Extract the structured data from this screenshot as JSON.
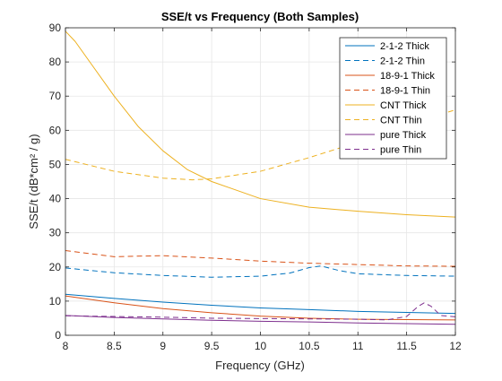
{
  "chart_data": {
    "type": "line",
    "title": "SSE/t vs Frequency (Both Samples)",
    "xlabel": "Frequency (GHz)",
    "ylabel": "SSE/t (dB*cm² / g)",
    "xlim": [
      8,
      12
    ],
    "ylim": [
      0,
      90
    ],
    "xticks": [
      "8",
      "8.5",
      "9",
      "9.5",
      "10",
      "10.5",
      "11",
      "11.5",
      "12"
    ],
    "yticks": [
      "0",
      "10",
      "20",
      "30",
      "40",
      "50",
      "60",
      "70",
      "80",
      "90"
    ],
    "grid": true,
    "legend_position": "top-right",
    "series": [
      {
        "name": "2-1-2 Thick",
        "color": "#0072BD",
        "dash": "solid",
        "x": [
          8.0,
          8.5,
          9.0,
          9.5,
          10.0,
          10.5,
          11.0,
          11.5,
          12.0
        ],
        "y": [
          12.0,
          10.8,
          9.7,
          8.8,
          8.0,
          7.5,
          7.0,
          6.7,
          6.4
        ]
      },
      {
        "name": "2-1-2 Thin",
        "color": "#0072BD",
        "dash": "dashed",
        "x": [
          8.0,
          8.5,
          9.0,
          9.5,
          10.0,
          10.3,
          10.5,
          10.62,
          10.8,
          11.0,
          11.5,
          12.0
        ],
        "y": [
          19.7,
          18.3,
          17.5,
          17.0,
          17.3,
          18.2,
          19.8,
          20.3,
          19.0,
          18.0,
          17.5,
          17.3
        ]
      },
      {
        "name": "18-9-1 Thick",
        "color": "#D95319",
        "dash": "solid",
        "x": [
          8.0,
          8.5,
          9.0,
          9.5,
          10.0,
          10.5,
          11.0,
          11.5,
          12.0
        ],
        "y": [
          11.5,
          9.5,
          7.8,
          6.6,
          5.6,
          5.0,
          4.7,
          4.6,
          4.5
        ]
      },
      {
        "name": "18-9-1 Thin",
        "color": "#D95319",
        "dash": "dashed",
        "x": [
          8.0,
          8.5,
          9.0,
          9.5,
          10.0,
          10.5,
          11.0,
          11.5,
          12.0
        ],
        "y": [
          24.8,
          23.0,
          23.3,
          22.6,
          21.7,
          21.1,
          20.7,
          20.3,
          20.2
        ]
      },
      {
        "name": "CNT Thick",
        "color": "#EDB120",
        "dash": "solid",
        "x": [
          8.0,
          8.1,
          8.25,
          8.5,
          8.75,
          9.0,
          9.25,
          9.5,
          10.0,
          10.5,
          11.0,
          11.5,
          12.0
        ],
        "y": [
          89.0,
          86.0,
          80.0,
          70.0,
          61.0,
          54.0,
          48.5,
          45.0,
          40.0,
          37.5,
          36.3,
          35.3,
          34.6
        ]
      },
      {
        "name": "CNT Thin",
        "color": "#EDB120",
        "dash": "dashed",
        "x": [
          8.0,
          8.5,
          9.0,
          9.3,
          9.5,
          10.0,
          10.5,
          11.0,
          11.5,
          12.0
        ],
        "y": [
          51.5,
          48.0,
          46.0,
          45.5,
          45.8,
          48.0,
          52.0,
          56.5,
          61.5,
          66.0
        ]
      },
      {
        "name": "pure Thick",
        "color": "#7E2F8E",
        "dash": "solid",
        "x": [
          8.0,
          8.5,
          9.0,
          9.5,
          10.0,
          10.5,
          11.0,
          11.5,
          12.0
        ],
        "y": [
          5.8,
          5.2,
          4.8,
          4.4,
          4.1,
          3.9,
          3.6,
          3.4,
          3.2
        ]
      },
      {
        "name": "pure Thin",
        "color": "#7E2F8E",
        "dash": "dashed",
        "x": [
          8.0,
          8.5,
          9.0,
          9.5,
          10.0,
          10.5,
          11.0,
          11.3,
          11.5,
          11.62,
          11.68,
          11.75,
          11.85,
          12.0
        ],
        "y": [
          5.7,
          5.5,
          5.3,
          5.0,
          4.9,
          4.8,
          4.7,
          4.5,
          5.5,
          8.5,
          9.5,
          8.5,
          5.8,
          5.4
        ]
      }
    ]
  }
}
